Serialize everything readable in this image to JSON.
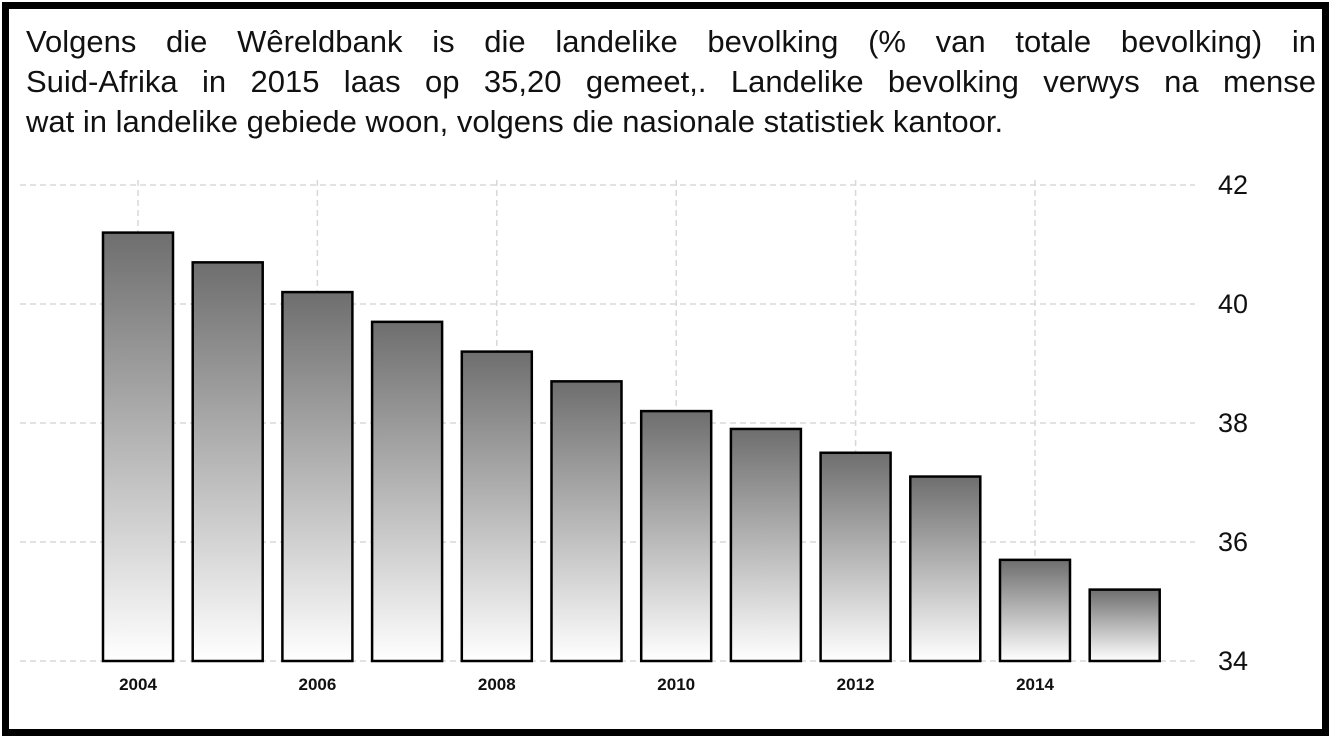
{
  "caption": {
    "line1": "Volgens die Wêreldbank is die landelike bevolking (% van totale bevolking) in",
    "line2": "Suid-Afrika in 2015 laas op 35,20 gemeet,. Landelike bevolking verwys na mense",
    "line3": "wat in landelike gebiede woon, volgens die nasionale statistiek kantoor."
  },
  "colors": {
    "bar_top": "#6e6e6e",
    "bar_bottom": "#ffffff",
    "bar_outline": "#000000",
    "grid": "#d8d8d8",
    "frame": "#000000"
  },
  "chart_data": {
    "type": "bar",
    "categories": [
      "2004",
      "2005",
      "2006",
      "2007",
      "2008",
      "2009",
      "2010",
      "2011",
      "2012",
      "2013",
      "2014",
      "2015"
    ],
    "values": [
      41.2,
      40.7,
      40.2,
      39.7,
      39.2,
      38.7,
      38.2,
      37.9,
      37.5,
      37.1,
      35.7,
      35.2
    ],
    "x_tick_labels": [
      "2004",
      "2006",
      "2008",
      "2010",
      "2012",
      "2014"
    ],
    "y_tick_labels": [
      "42",
      "40",
      "38",
      "36",
      "34"
    ],
    "ylim": [
      34,
      42
    ],
    "grid": true,
    "y_axis_position": "right",
    "title": "",
    "xlabel": "",
    "ylabel": ""
  }
}
